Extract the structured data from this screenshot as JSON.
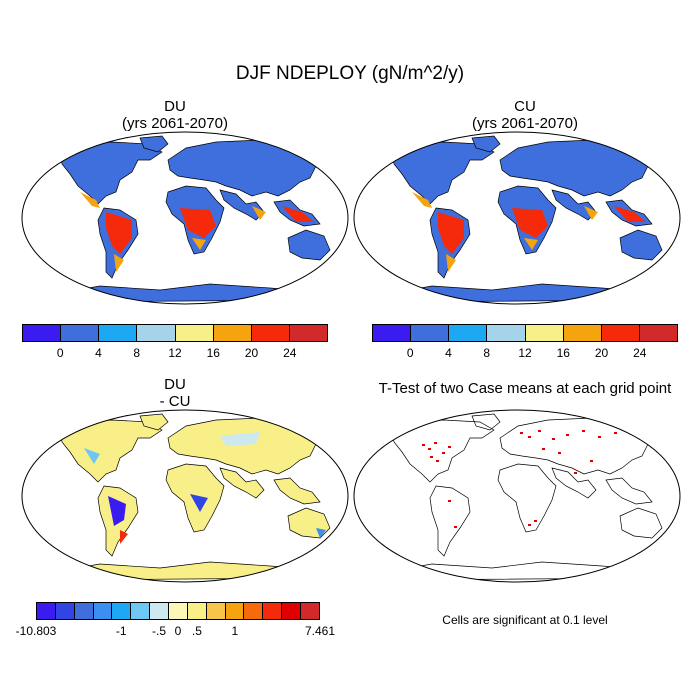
{
  "title": "DJF NDEPLOY (gN/m^2/y)",
  "panels": {
    "du": {
      "line1": "DU",
      "line2": "(yrs 2061-2070)"
    },
    "cu": {
      "line1": "CU",
      "line2": "(yrs 2061-2070)"
    },
    "diff": {
      "line1": "DU",
      "line2": "- CU"
    },
    "ttest": {
      "title": "T-Test of two Case means at each grid point",
      "note": "Cells are significant at 0.1 level"
    }
  },
  "colorbar_top": {
    "colors": [
      "#3a1bf0",
      "#3f6fdc",
      "#1ea7f2",
      "#a5d3ea",
      "#f8ef88",
      "#f5a40f",
      "#f52a0a",
      "#d22a2a"
    ],
    "labels": [
      "0",
      "4",
      "8",
      "12",
      "16",
      "20",
      "24"
    ]
  },
  "colorbar_bottom": {
    "colors": [
      "#3a1bf0",
      "#3145e4",
      "#3f6fdc",
      "#3a8ff0",
      "#1ea7f2",
      "#6ec6f2",
      "#cde8ef",
      "#fbf7b6",
      "#f8ef88",
      "#f6c54b",
      "#f5a40f",
      "#f56a0d",
      "#f52a0a",
      "#e00000",
      "#d22a2a"
    ],
    "labels": [
      "-10.803",
      "-1",
      "-.5",
      "0",
      ".5",
      "1",
      "7.461"
    ]
  },
  "map_colors": {
    "ocean": "#ffffff",
    "land_low": "#3f6fdc",
    "tropic_high": "#f52a0a",
    "tropic_mid": "#f5a40f",
    "diff_land": "#f8ef88",
    "significant": "#e00000"
  }
}
